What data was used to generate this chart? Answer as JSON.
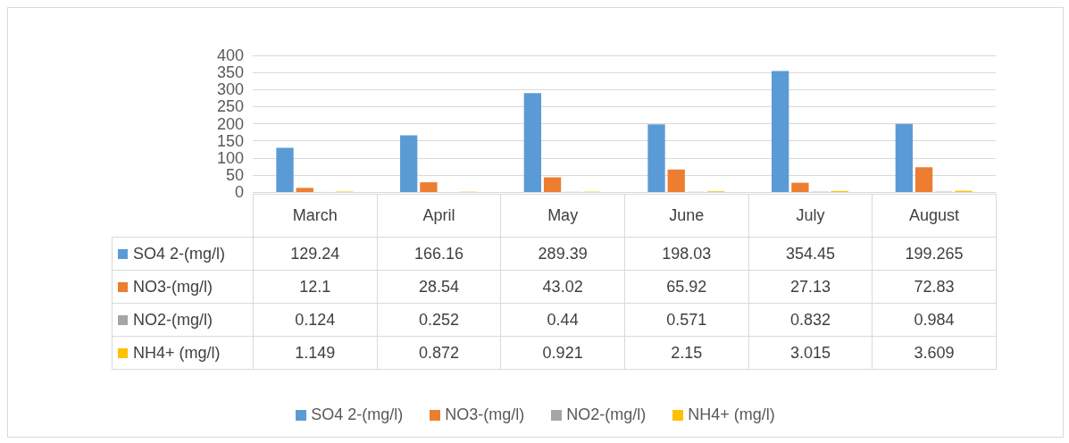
{
  "chart_data": {
    "type": "bar",
    "categories": [
      "March",
      "April",
      "May",
      "June",
      "July",
      "August"
    ],
    "series": [
      {
        "name": "SO4 2-(mg/l)",
        "color": "#5b9bd5",
        "values": [
          129.24,
          166.16,
          289.39,
          198.03,
          354.45,
          199.265
        ]
      },
      {
        "name": "NO3-(mg/l)",
        "color": "#ed7d31",
        "values": [
          12.1,
          28.54,
          43.02,
          65.92,
          27.13,
          72.83
        ]
      },
      {
        "name": "NO2-(mg/l)",
        "color": "#a5a5a5",
        "values": [
          0.124,
          0.252,
          0.44,
          0.571,
          0.832,
          0.984
        ]
      },
      {
        "name": "NH4+ (mg/l)",
        "color": "#ffc000",
        "values": [
          1.149,
          0.872,
          0.921,
          2.15,
          3.015,
          3.609
        ]
      }
    ],
    "ylim": [
      0,
      400
    ],
    "yticks": [
      0,
      50,
      100,
      150,
      200,
      250,
      300,
      350,
      400
    ],
    "grid": "y",
    "legend": "bottom",
    "data_labels": true
  }
}
